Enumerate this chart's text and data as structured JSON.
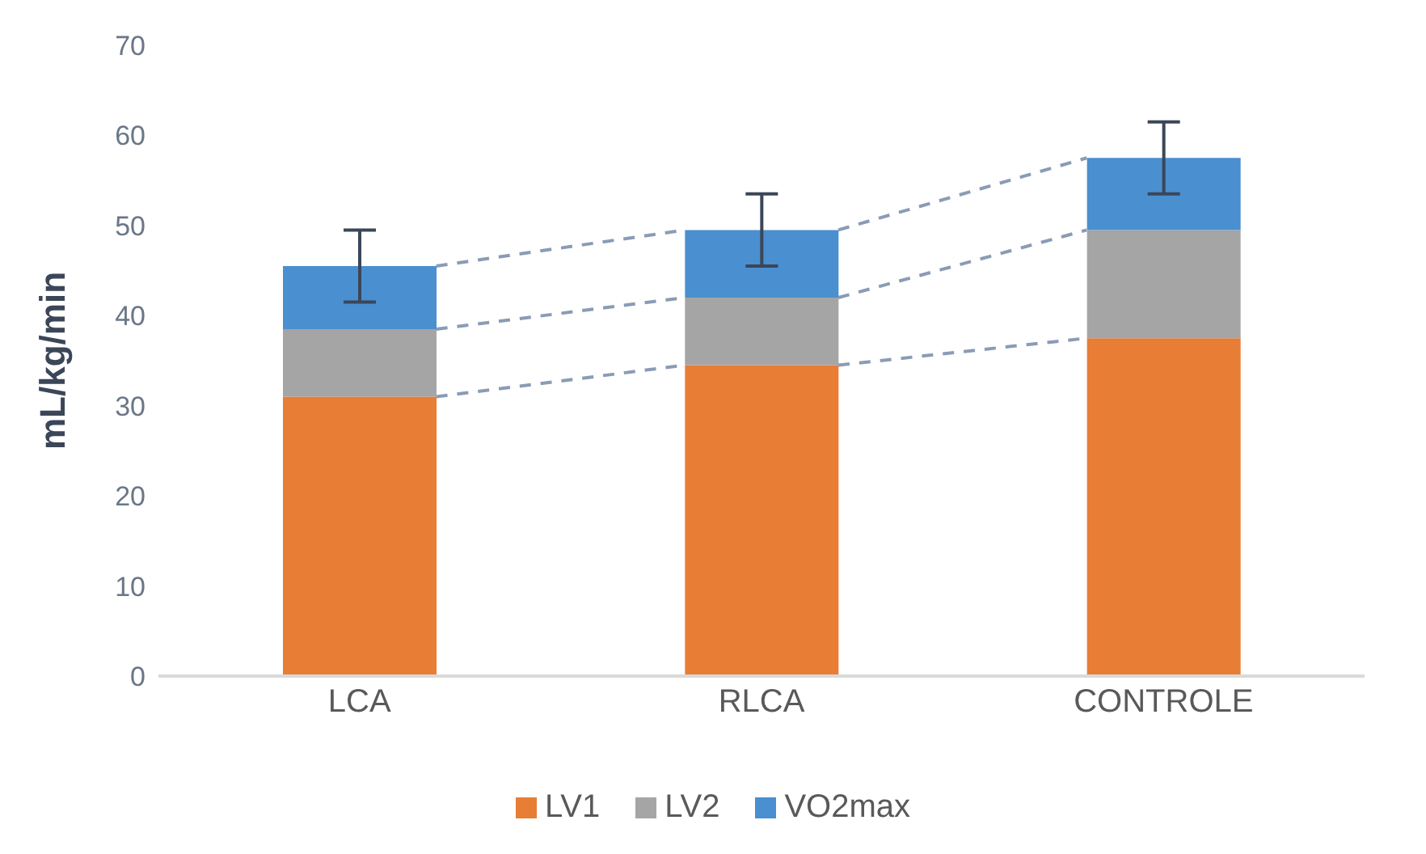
{
  "chart_data": {
    "type": "bar",
    "stacked": true,
    "ylabel": "mL/kg/min",
    "categories": [
      "LCA",
      "RLCA",
      "CONTROLE"
    ],
    "series": [
      {
        "name": "LV1",
        "color": "#e87d35",
        "values": [
          31,
          34.5,
          37.5
        ]
      },
      {
        "name": "LV2",
        "color": "#a5a5a5",
        "values": [
          7.5,
          7.5,
          12
        ]
      },
      {
        "name": "VO2max",
        "color": "#4a8fd0",
        "values": [
          7,
          7.5,
          8
        ],
        "errors": [
          4,
          4,
          4
        ]
      }
    ],
    "ylim": [
      0,
      70
    ],
    "yticks": [
      0,
      10,
      20,
      30,
      40,
      50,
      60,
      70
    ],
    "grid": false,
    "legend": "bottom"
  }
}
